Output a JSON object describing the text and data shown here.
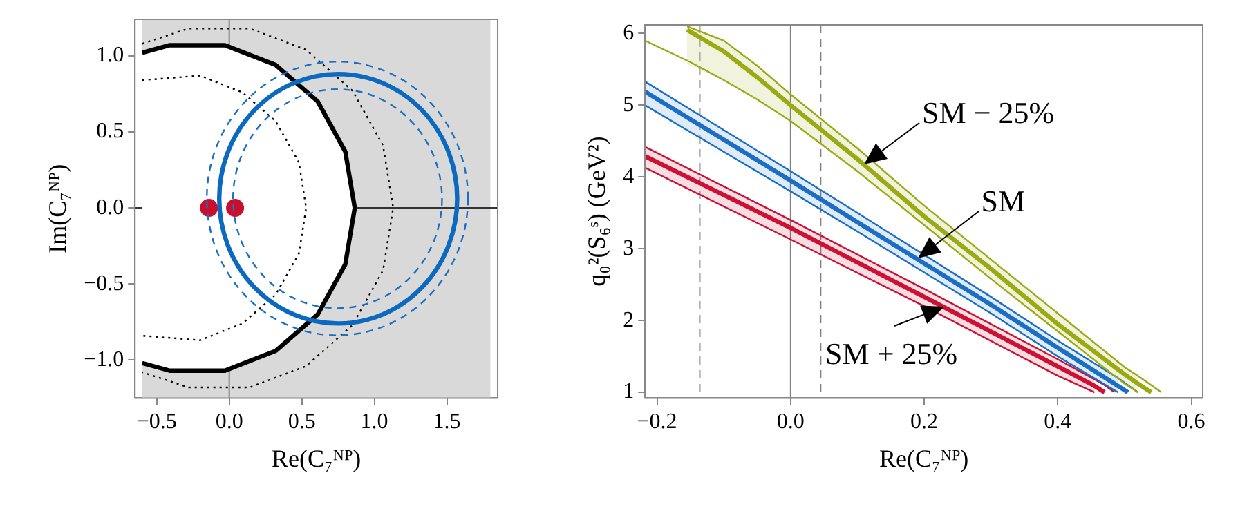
{
  "chart_data": [
    {
      "type": "line",
      "xlabel": "Re(C₇ᴺᴾ)",
      "ylabel": "Im(C₇ᴺᴾ)",
      "xlim": [
        -0.65,
        1.85
      ],
      "ylim": [
        -1.25,
        1.24
      ],
      "xticks": [
        {
          "value": -0.5,
          "label": "−0.5"
        },
        {
          "value": 0,
          "label": "0.0"
        },
        {
          "value": 0.5,
          "label": "0.5"
        },
        {
          "value": 1,
          "label": "1.0"
        },
        {
          "value": 1.5,
          "label": "1.5"
        }
      ],
      "yticks": [
        {
          "value": -1,
          "label": "−1.0"
        },
        {
          "value": -0.5,
          "label": "−0.5"
        },
        {
          "value": 0,
          "label": "0.0"
        },
        {
          "value": 0.5,
          "label": "0.5"
        },
        {
          "value": 1,
          "label": "1.0"
        }
      ],
      "bands": [
        {
          "axis": "x",
          "from": -0.6,
          "to": 1.8,
          "color": "#d9d9d9"
        }
      ],
      "ref_lines": [
        {
          "axis": "x",
          "value": 0,
          "color": "#808080",
          "line_style": "solid"
        },
        {
          "axis": "y",
          "value": 0,
          "color": "#333333",
          "line_style": "solid"
        }
      ],
      "series": [
        {
          "type": "area",
          "color": "#000000",
          "line_style": "solid",
          "x": [
            -0.6,
            -0.41,
            -0.03,
            0.32,
            0.61,
            0.8,
            0.865,
            0.8,
            0.61,
            0.32,
            -0.03,
            -0.41,
            -0.6
          ],
          "values": [
            1.02,
            1.07,
            1.07,
            0.94,
            0.7,
            0.37,
            0,
            -0.37,
            -0.7,
            -0.94,
            -1.07,
            -1.07,
            -1.02
          ]
        },
        {
          "type": "line",
          "color": "#000000",
          "line_style": "dotted",
          "x": [
            -0.6,
            -0.2,
            0.09,
            0.32,
            0.48,
            0.53,
            0.48,
            0.32,
            0.09,
            -0.2,
            -0.6
          ],
          "values": [
            0.84,
            0.87,
            0.76,
            0.57,
            0.3,
            0,
            -0.3,
            -0.57,
            -0.76,
            -0.87,
            -0.84
          ]
        },
        {
          "type": "line",
          "color": "#000000",
          "line_style": "dotted",
          "x": [
            -0.6,
            -0.28,
            0.14,
            0.53,
            0.85,
            1.06,
            1.13,
            1.06,
            0.85,
            0.53,
            0.14,
            -0.28,
            -0.6
          ],
          "values": [
            1.08,
            1.18,
            1.18,
            1.04,
            0.77,
            0.41,
            0,
            -0.41,
            -0.77,
            -1.04,
            -1.18,
            -1.18,
            -1.08
          ]
        },
        {
          "type": "scatter",
          "color": "#c8102e",
          "marker": "circle",
          "x": [
            -0.14,
            0.04
          ],
          "values": [
            0,
            0
          ]
        }
      ]
    },
    {
      "type": "line",
      "xlabel": "Re(C₇ᴺᴾ)",
      "ylabel": "q₀²(S₆ˢ) (GeV²)",
      "xlim": [
        -0.218,
        0.617
      ],
      "ylim": [
        0.92,
        6.12
      ],
      "xticks": [
        {
          "value": -0.2,
          "label": "−0.2"
        },
        {
          "value": 0,
          "label": "0.0"
        },
        {
          "value": 0.2,
          "label": "0.2"
        },
        {
          "value": 0.4,
          "label": "0.4"
        },
        {
          "value": 0.6,
          "label": "0.6"
        }
      ],
      "yticks": [
        1,
        2,
        3,
        4,
        5,
        6
      ],
      "ref_lines": [
        {
          "axis": "x",
          "value": 0,
          "color": "#808080",
          "line_style": "solid"
        },
        {
          "axis": "x",
          "value": -0.136,
          "color": "#808080",
          "line_style": "dashed"
        },
        {
          "axis": "x",
          "value": 0.045,
          "color": "#808080",
          "line_style": "dashed"
        }
      ],
      "annotations": [
        {
          "text": "SM − 25%",
          "x": 0.11,
          "y": 4.17
        },
        {
          "text": "SM",
          "x": 0.19,
          "y": 2.86
        },
        {
          "text": "SM + 25%",
          "x": 0.23,
          "y": 2.2
        }
      ],
      "series": [
        {
          "type": "line",
          "color": "#9aab12",
          "line_style": "solid",
          "x": [
            -0.155,
            -0.1,
            -0.05,
            0,
            0.1,
            0.2,
            0.3,
            0.4,
            0.5,
            0.52,
            0.54
          ],
          "values": [
            6.05,
            5.75,
            5.39,
            5.0,
            4.25,
            3.45,
            2.72,
            1.95,
            1.25,
            1.12,
            1.0
          ],
          "upper": [
            6.1,
            5.9,
            5.55,
            5.15,
            4.4,
            3.6,
            2.85,
            2.1,
            1.35,
            1.23,
            null
          ],
          "lower": [
            5.57,
            5.35,
            5.08,
            4.78,
            4.08,
            3.33,
            2.58,
            1.85,
            1.12,
            1.0,
            null
          ]
        },
        {
          "type": "line",
          "color": "#9aab12",
          "line_style": "solid",
          "x": [
            -0.155,
            -0.1,
            -0.05,
            0,
            0.1,
            0.2,
            0.3,
            0.4,
            0.5,
            0.52,
            0.54,
            0.555
          ],
          "values": [
            6.1,
            5.9,
            5.55,
            5.15,
            4.4,
            3.6,
            2.85,
            2.1,
            1.35,
            1.23,
            1.1,
            1.0
          ]
        },
        {
          "type": "line",
          "color": "#9aab12",
          "line_style": "solid",
          "x": [
            -0.218,
            -0.15,
            -0.1,
            -0.05,
            0,
            0.1,
            0.2,
            0.3,
            0.4,
            0.5,
            0.52
          ],
          "values": [
            5.9,
            5.6,
            5.35,
            5.08,
            4.78,
            4.08,
            3.33,
            2.58,
            1.85,
            1.12,
            1.0
          ]
        },
        {
          "type": "line",
          "color": "#1a6fc4",
          "line_style": "solid",
          "x": [
            -0.218,
            0,
            0.1,
            0.3,
            0.4,
            0.49,
            0.505
          ],
          "values": [
            5.19,
            3.95,
            3.37,
            2.22,
            1.62,
            1.09,
            1.0
          ],
          "upper": [
            5.33,
            4.08,
            3.5,
            2.33,
            1.72,
            1.2,
            null
          ],
          "lower": [
            5.0,
            3.8,
            3.24,
            2.1,
            1.5,
            1.0,
            null
          ]
        },
        {
          "type": "line",
          "color": "#1a6fc4",
          "line_style": "solid",
          "x": [
            -0.218,
            0,
            0.1,
            0.3,
            0.4,
            0.49,
            0.505,
            0.52
          ],
          "values": [
            5.33,
            4.08,
            3.5,
            2.33,
            1.72,
            1.2,
            1.1,
            1.0
          ]
        },
        {
          "type": "line",
          "color": "#1a6fc4",
          "line_style": "solid",
          "x": [
            -0.218,
            0,
            0.1,
            0.3,
            0.4,
            0.49
          ],
          "values": [
            5.0,
            3.8,
            3.24,
            2.1,
            1.5,
            1.0
          ]
        },
        {
          "type": "line",
          "color": "#cc1133",
          "line_style": "solid",
          "x": [
            -0.218,
            0,
            0.2,
            0.4,
            0.455,
            0.47
          ],
          "values": [
            4.29,
            3.29,
            2.33,
            1.36,
            1.09,
            1.0
          ],
          "upper": [
            4.42,
            3.4,
            2.44,
            1.46,
            1.18,
            null
          ],
          "lower": [
            4.13,
            3.13,
            2.2,
            1.23,
            1.0,
            null
          ]
        },
        {
          "type": "line",
          "color": "#cc1133",
          "line_style": "solid",
          "x": [
            -0.218,
            0,
            0.2,
            0.4,
            0.455,
            0.47,
            0.485
          ],
          "values": [
            4.42,
            3.4,
            2.44,
            1.46,
            1.18,
            1.1,
            1.0
          ]
        },
        {
          "type": "line",
          "color": "#cc1133",
          "line_style": "solid",
          "x": [
            -0.218,
            0,
            0.2,
            0.4,
            0.455
          ],
          "values": [
            4.13,
            3.13,
            2.2,
            1.23,
            1.0
          ]
        }
      ]
    }
  ]
}
